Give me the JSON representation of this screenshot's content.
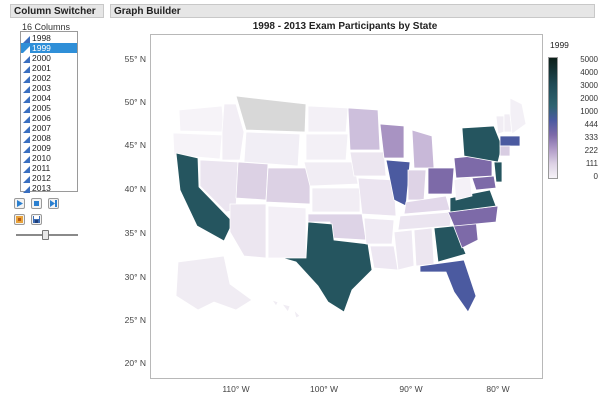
{
  "column_switcher": {
    "title": "Column Switcher",
    "count_label": "16 Columns",
    "columns": [
      "1998",
      "1999",
      "2000",
      "2001",
      "2002",
      "2003",
      "2004",
      "2005",
      "2006",
      "2007",
      "2008",
      "2009",
      "2010",
      "2011",
      "2012",
      "2013"
    ],
    "selected": "1999"
  },
  "graph_builder": {
    "title": "Graph Builder"
  },
  "chart": {
    "title": "1998 - 2013 Exam Participants by State",
    "y_ticks": [
      "55° N",
      "50° N",
      "45° N",
      "40° N",
      "35° N",
      "30° N",
      "25° N",
      "20° N"
    ],
    "x_ticks": [
      "110° W",
      "100° W",
      "90° W",
      "80° W"
    ]
  },
  "legend": {
    "title": "1999",
    "ticks": [
      "5000",
      "4000",
      "3000",
      "2000",
      "1000",
      "444",
      "333",
      "222",
      "111",
      "0"
    ]
  },
  "colors": {
    "highest": "#1f4a55",
    "high": "#25555f",
    "mid_blue": "#4b5aa0",
    "mid_purple": "#7d6aa8",
    "light_purple": "#b09bc8",
    "pale": "#dcd1e4",
    "very_pale": "#ece6f0",
    "no_data": "#d8d8d8",
    "selected_item": "#2f8fd8"
  }
}
